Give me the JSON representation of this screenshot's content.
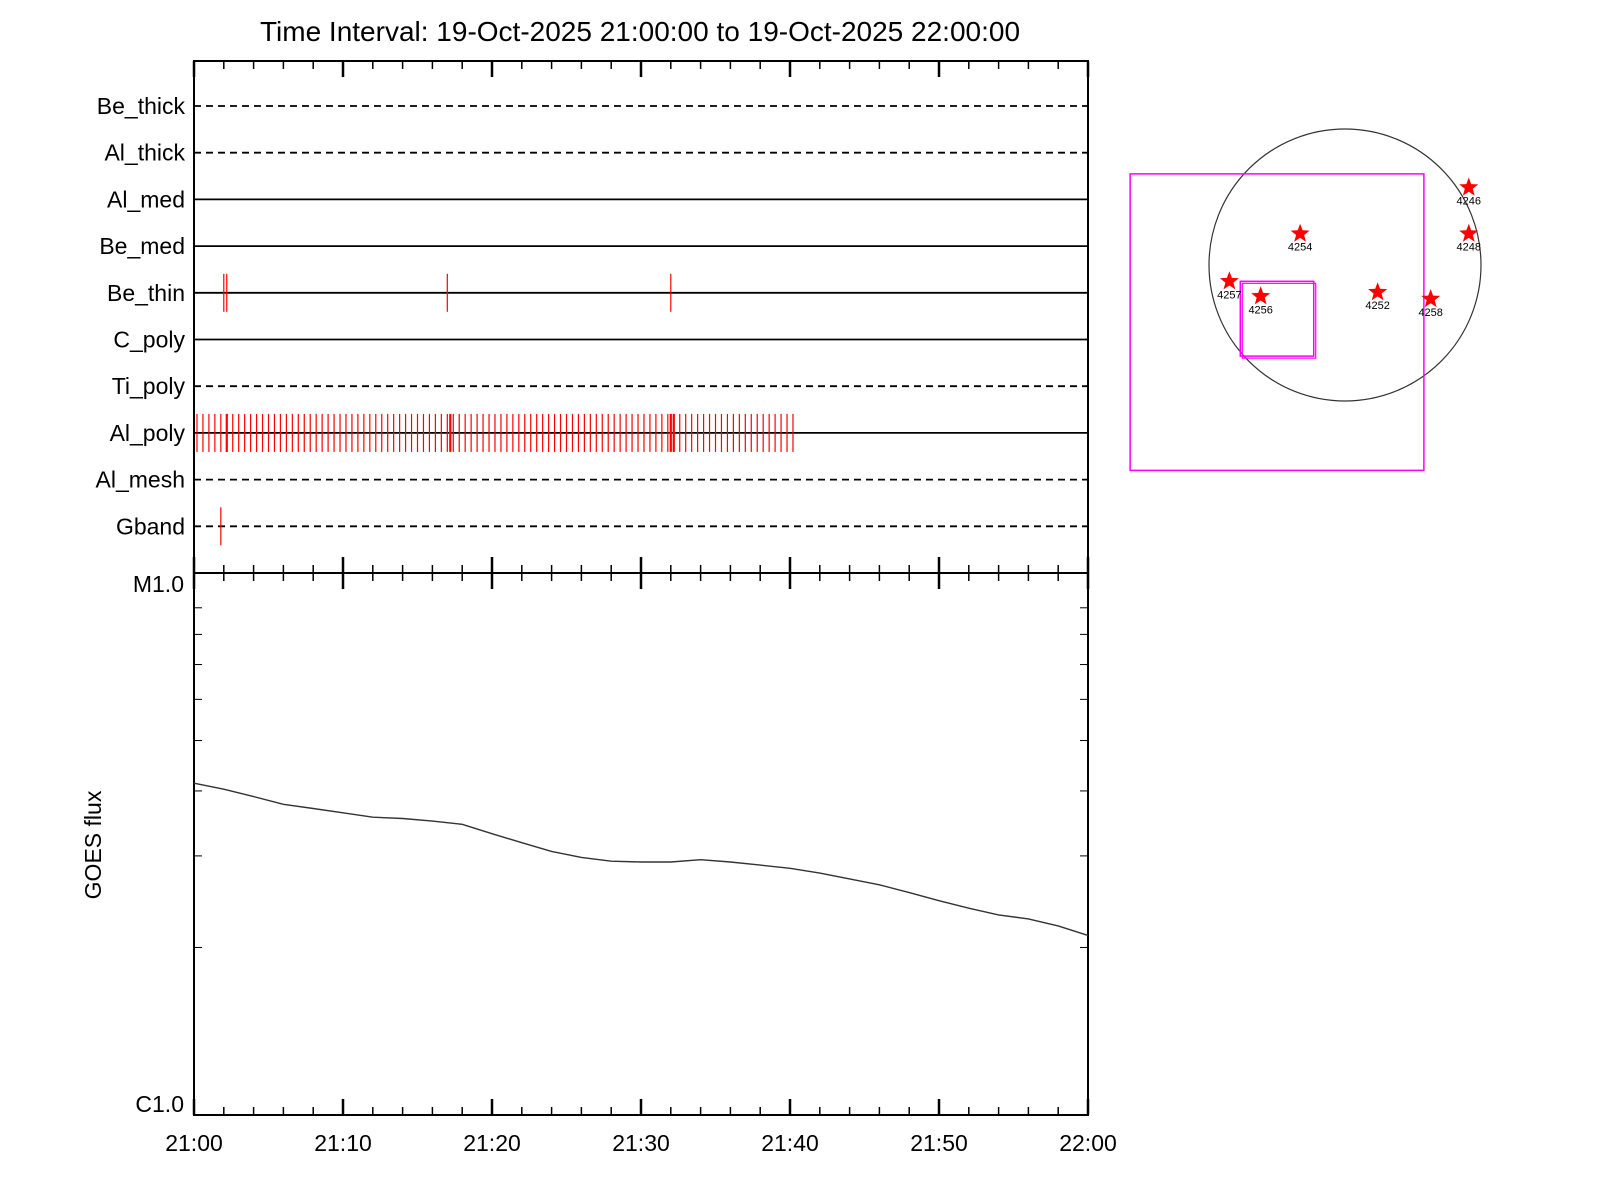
{
  "title": "Time Interval: 19-Oct-2025 21:00:00 to 19-Oct-2025 22:00:00",
  "colors": {
    "axes": "#000000",
    "event": "#ff0000",
    "flux": "#333333",
    "fov_box": "#ff00ff",
    "limb": "#333333"
  },
  "chart_data": [
    {
      "type": "line",
      "name": "filter-timeline",
      "x_range_minutes": [
        0,
        60
      ],
      "filters": [
        {
          "name": "Be_thick",
          "style": "dashed",
          "events": []
        },
        {
          "name": "Al_thick",
          "style": "dashed",
          "events": []
        },
        {
          "name": "Al_med",
          "style": "solid",
          "events": []
        },
        {
          "name": "Be_med",
          "style": "solid",
          "events": []
        },
        {
          "name": "Be_thin",
          "style": "solid",
          "events": [
            2.0,
            2.2,
            17.0,
            32.0
          ]
        },
        {
          "name": "C_poly",
          "style": "solid",
          "events": []
        },
        {
          "name": "Ti_poly",
          "style": "dashed",
          "events": []
        },
        {
          "name": "Al_poly",
          "style": "solid",
          "events_range": [
            0.2,
            40.2
          ],
          "events_step": 0.4,
          "events_bold": [
            2.2,
            17.2,
            32.0,
            32.2
          ]
        },
        {
          "name": "Al_mesh",
          "style": "dashed",
          "events": []
        },
        {
          "name": "Gband",
          "style": "dashed",
          "events": [
            1.8
          ]
        }
      ]
    },
    {
      "type": "line",
      "name": "goes-flux",
      "ylabel": "GOES flux",
      "yscale": "log",
      "ylim": [
        1e-06,
        1e-05
      ],
      "y_tick_labels": [
        "C1.0",
        "M1.0"
      ],
      "x_ticks": [
        "21:00",
        "21:10",
        "21:20",
        "21:30",
        "21:40",
        "21:50",
        "22:00"
      ],
      "series": [
        {
          "x": [
            0,
            2,
            4,
            6,
            8,
            10,
            12,
            14,
            16,
            18,
            20,
            22,
            24,
            26,
            28,
            30,
            32,
            34,
            36,
            38,
            40,
            42,
            44,
            46,
            48,
            50,
            52,
            54,
            56,
            58,
            60
          ],
          "y": [
            4.14e-06,
            4.03e-06,
            3.9e-06,
            3.77e-06,
            3.7e-06,
            3.63e-06,
            3.56e-06,
            3.54e-06,
            3.5e-06,
            3.45e-06,
            3.31e-06,
            3.18e-06,
            3.06e-06,
            2.98e-06,
            2.93e-06,
            2.92e-06,
            2.92e-06,
            2.95e-06,
            2.92e-06,
            2.88e-06,
            2.84e-06,
            2.78e-06,
            2.71e-06,
            2.64e-06,
            2.55e-06,
            2.46e-06,
            2.38e-06,
            2.31e-06,
            2.27e-06,
            2.2e-06,
            2.11e-06
          ]
        }
      ]
    },
    {
      "type": "scatter",
      "name": "solar-disk-map",
      "active_regions": [
        {
          "id": "4246",
          "x": 0.91,
          "y": 0.57
        },
        {
          "id": "4248",
          "x": 0.91,
          "y": 0.23
        },
        {
          "id": "4254",
          "x": -0.33,
          "y": 0.23
        },
        {
          "id": "4257",
          "x": -0.85,
          "y": -0.12
        },
        {
          "id": "4256",
          "x": -0.62,
          "y": -0.23
        },
        {
          "id": "4252",
          "x": 0.24,
          "y": -0.2
        },
        {
          "id": "4258",
          "x": 0.63,
          "y": -0.25
        }
      ],
      "fov_boxes": [
        {
          "name": "large",
          "x": [
            -1.58,
            0.58
          ],
          "y": [
            -1.51,
            0.67
          ]
        },
        {
          "name": "small",
          "x": [
            -0.77,
            -0.23
          ],
          "y": [
            -0.67,
            -0.12
          ]
        }
      ]
    }
  ]
}
